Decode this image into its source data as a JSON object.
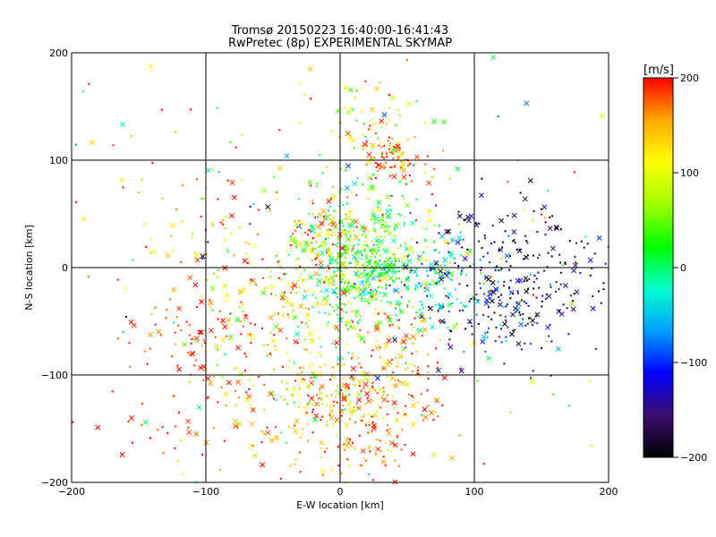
{
  "chart_data": {
    "type": "scatter",
    "title": "Tromsø 20150223 16:40:00-16:41:43",
    "subtitle": "RwPretec (8p) EXPERIMENTAL SKYMAP",
    "xlabel": "E-W location [km]",
    "ylabel": "N-S location [km]",
    "xlim": [
      -200,
      200
    ],
    "ylim": [
      -200,
      200
    ],
    "xticks": [
      -200,
      -100,
      0,
      100,
      200
    ],
    "yticks": [
      -200,
      -100,
      0,
      100,
      200
    ],
    "x_tick_labels": [
      "−200",
      "−100",
      "0",
      "100",
      "200"
    ],
    "y_tick_labels": [
      "−200",
      "−100",
      "0",
      "100",
      "200"
    ],
    "grid": true,
    "markers": [
      "x",
      "dot"
    ],
    "colorbar": {
      "label": "[m/s]",
      "range": [
        -200,
        200
      ],
      "ticks": [
        200,
        100,
        0,
        -100,
        -200
      ],
      "tick_labels": [
        "200",
        "100",
        "0",
        "−100",
        "−200"
      ],
      "colormap": [
        "#000000",
        "#3b0f6e",
        "#0000ff",
        "#00a0ff",
        "#00ffcc",
        "#00ff00",
        "#a0ff00",
        "#ffff00",
        "#ffaa00",
        "#ff0000"
      ]
    },
    "clusters": [
      {
        "cx": 15,
        "cy": 5,
        "sx": 22,
        "sy": 35,
        "n": 520,
        "v": 40,
        "dv": 45
      },
      {
        "cx": 60,
        "cy": -10,
        "sx": 25,
        "sy": 20,
        "n": 160,
        "v": -30,
        "dv": 40
      },
      {
        "cx": 135,
        "cy": 0,
        "sx": 35,
        "sy": 35,
        "n": 230,
        "v": -165,
        "dv": 35
      },
      {
        "cx": 110,
        "cy": -40,
        "sx": 25,
        "sy": 30,
        "n": 90,
        "v": -110,
        "dv": 40
      },
      {
        "cx": 40,
        "cy": 100,
        "sx": 12,
        "sy": 12,
        "n": 90,
        "v": 175,
        "dv": 25
      },
      {
        "cx": 20,
        "cy": 140,
        "sx": 25,
        "sy": 30,
        "n": 60,
        "v": 110,
        "dv": 60
      },
      {
        "cx": 20,
        "cy": -145,
        "sx": 30,
        "sy": 30,
        "n": 220,
        "v": 165,
        "dv": 35
      },
      {
        "cx": -5,
        "cy": -110,
        "sx": 25,
        "sy": 15,
        "n": 110,
        "v": 120,
        "dv": 50
      },
      {
        "cx": 45,
        "cy": -70,
        "sx": 20,
        "sy": 20,
        "n": 70,
        "v": 160,
        "dv": 40
      },
      {
        "cx": -50,
        "cy": -30,
        "sx": 35,
        "sy": 45,
        "n": 200,
        "v": 135,
        "dv": 55
      },
      {
        "cx": -115,
        "cy": -60,
        "sx": 20,
        "sy": 20,
        "n": 45,
        "v": 190,
        "dv": 15
      },
      {
        "cx": -70,
        "cy": -140,
        "sx": 40,
        "sy": 30,
        "n": 60,
        "v": 175,
        "dv": 25
      },
      {
        "cx": -140,
        "cy": -140,
        "sx": 30,
        "sy": 30,
        "n": 25,
        "v": 185,
        "dv": 20
      },
      {
        "cx": -10,
        "cy": 30,
        "sx": 15,
        "sy": 15,
        "n": 70,
        "v": 165,
        "dv": 35
      },
      {
        "cx": -120,
        "cy": 60,
        "sx": 45,
        "sy": 50,
        "n": 40,
        "v": 160,
        "dv": 70
      },
      {
        "cx": 0,
        "cy": 0,
        "sx": 120,
        "sy": 110,
        "n": 220,
        "v": 60,
        "dv": 110
      }
    ]
  }
}
